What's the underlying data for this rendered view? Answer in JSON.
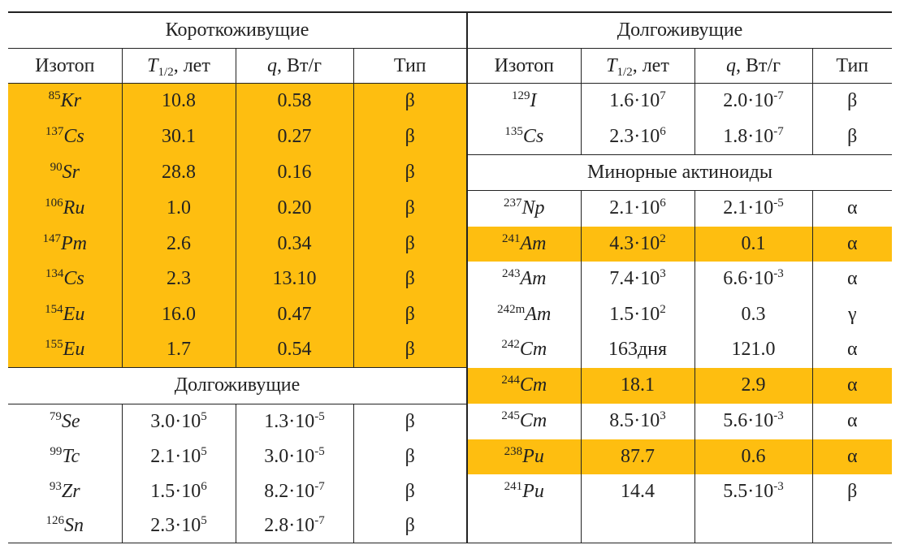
{
  "highlight_color": "#FEBE10",
  "left": {
    "title": "Короткоживущие",
    "headers": {
      "isotope": "Изотоп",
      "t_sym": "T",
      "t_sub": "1/2",
      "t_unit": ", лет",
      "q_sym": "q",
      "q_unit": ", Вт/г",
      "type": "Тип"
    },
    "short_lived": [
      {
        "mass": "85",
        "sym": "Kr",
        "t": {
          "base": "10.8",
          "exp": ""
        },
        "q": {
          "base": "0.58",
          "exp": ""
        },
        "type": "β",
        "hl": true
      },
      {
        "mass": "137",
        "sym": "Cs",
        "t": {
          "base": "30.1",
          "exp": ""
        },
        "q": {
          "base": "0.27",
          "exp": ""
        },
        "type": "β",
        "hl": true
      },
      {
        "mass": "90",
        "sym": "Sr",
        "t": {
          "base": "28.8",
          "exp": ""
        },
        "q": {
          "base": "0.16",
          "exp": ""
        },
        "type": "β",
        "hl": true
      },
      {
        "mass": "106",
        "sym": "Ru",
        "t": {
          "base": "1.0",
          "exp": ""
        },
        "q": {
          "base": "0.20",
          "exp": ""
        },
        "type": "β",
        "hl": true
      },
      {
        "mass": "147",
        "sym": "Pm",
        "t": {
          "base": "2.6",
          "exp": ""
        },
        "q": {
          "base": "0.34",
          "exp": ""
        },
        "type": "β",
        "hl": true
      },
      {
        "mass": "134",
        "sym": "Cs",
        "t": {
          "base": "2.3",
          "exp": ""
        },
        "q": {
          "base": "13.10",
          "exp": ""
        },
        "type": "β",
        "hl": true
      },
      {
        "mass": "154",
        "sym": "Eu",
        "t": {
          "base": "16.0",
          "exp": ""
        },
        "q": {
          "base": "0.47",
          "exp": ""
        },
        "type": "β",
        "hl": true
      },
      {
        "mass": "155",
        "sym": "Eu",
        "t": {
          "base": "1.7",
          "exp": ""
        },
        "q": {
          "base": "0.54",
          "exp": ""
        },
        "type": "β",
        "hl": true
      }
    ],
    "long_title": "Долгоживущие",
    "long_lived": [
      {
        "mass": "79",
        "sym": "Se",
        "t": {
          "base": "3.0·10",
          "exp": "5"
        },
        "q": {
          "base": "1.3·10",
          "exp": "-5"
        },
        "type": "β",
        "hl": false
      },
      {
        "mass": "99",
        "sym": "Tc",
        "t": {
          "base": "2.1·10",
          "exp": "5"
        },
        "q": {
          "base": "3.0·10",
          "exp": "-5"
        },
        "type": "β",
        "hl": false
      },
      {
        "mass": "93",
        "sym": "Zr",
        "t": {
          "base": "1.5·10",
          "exp": "6"
        },
        "q": {
          "base": "8.2·10",
          "exp": "-7"
        },
        "type": "β",
        "hl": false
      },
      {
        "mass": "126",
        "sym": "Sn",
        "t": {
          "base": "2.3·10",
          "exp": "5"
        },
        "q": {
          "base": "2.8·10",
          "exp": "-7"
        },
        "type": "β",
        "hl": false
      }
    ]
  },
  "right": {
    "title": "Долгоживущие",
    "headers": {
      "isotope": "Изотоп",
      "t_sym": "T",
      "t_sub": "1/2",
      "t_unit": ", лет",
      "q_sym": "q",
      "q_unit": ", Вт/г",
      "type": "Тип"
    },
    "long_lived": [
      {
        "mass": "129",
        "sym": "I",
        "t": {
          "base": "1.6·10",
          "exp": "7"
        },
        "q": {
          "base": "2.0·10",
          "exp": "-7"
        },
        "type": "β",
        "hl": false
      },
      {
        "mass": "135",
        "sym": "Cs",
        "t": {
          "base": "2.3·10",
          "exp": "6"
        },
        "q": {
          "base": "1.8·10",
          "exp": "-7"
        },
        "type": "β",
        "hl": false
      }
    ],
    "actinides_title": "Минорные актиноиды",
    "actinides": [
      {
        "mass": "237",
        "sym": "Np",
        "t": {
          "base": "2.1·10",
          "exp": "6"
        },
        "q": {
          "base": "2.1·10",
          "exp": "-5"
        },
        "type": "α",
        "hl": false
      },
      {
        "mass": "241",
        "sym": "Am",
        "t": {
          "base": "4.3·10",
          "exp": "2"
        },
        "q": {
          "base": "0.1",
          "exp": ""
        },
        "type": "α",
        "hl": true
      },
      {
        "mass": "243",
        "sym": "Am",
        "t": {
          "base": "7.4·10",
          "exp": "3"
        },
        "q": {
          "base": "6.6·10",
          "exp": "-3"
        },
        "type": "α",
        "hl": false
      },
      {
        "mass": "242m",
        "sym": "Am",
        "t": {
          "base": "1.5·10",
          "exp": "2"
        },
        "q": {
          "base": "0.3",
          "exp": ""
        },
        "type": "γ",
        "hl": false
      },
      {
        "mass": "242",
        "sym": "Cm",
        "t": {
          "base": "163дня",
          "exp": ""
        },
        "q": {
          "base": "121.0",
          "exp": ""
        },
        "type": "α",
        "hl": false
      },
      {
        "mass": "244",
        "sym": "Cm",
        "t": {
          "base": "18.1",
          "exp": ""
        },
        "q": {
          "base": "2.9",
          "exp": ""
        },
        "type": "α",
        "hl": true
      },
      {
        "mass": "245",
        "sym": "Cm",
        "t": {
          "base": "8.5·10",
          "exp": "3"
        },
        "q": {
          "base": "5.6·10",
          "exp": "-3"
        },
        "type": "α",
        "hl": false
      },
      {
        "mass": "238",
        "sym": "Pu",
        "t": {
          "base": "87.7",
          "exp": ""
        },
        "q": {
          "base": "0.6",
          "exp": ""
        },
        "type": "α",
        "hl": true
      },
      {
        "mass": "241",
        "sym": "Pu",
        "t": {
          "base": "14.4",
          "exp": ""
        },
        "q": {
          "base": "5.5·10",
          "exp": "-3"
        },
        "type": "β",
        "hl": false
      }
    ]
  }
}
